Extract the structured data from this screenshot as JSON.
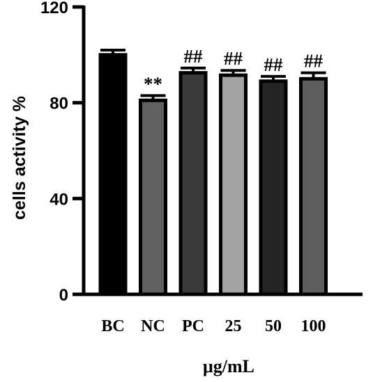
{
  "chart_data": {
    "type": "bar",
    "categories": [
      "BC",
      "NC",
      "PC",
      "25",
      "50",
      "100"
    ],
    "values": [
      100,
      81,
      92.5,
      91.5,
      89,
      90
    ],
    "errors": [
      2,
      2,
      2,
      2,
      2,
      2.5
    ],
    "bar_colors": [
      "#000000",
      "#616161",
      "#3a3a3a",
      "#a3a3a3",
      "#242424",
      "#5e5e5e"
    ],
    "annotations": [
      "",
      "**",
      "##",
      "##",
      "##",
      "##"
    ],
    "ylabel": "cells activity %",
    "xlabel": "μg/mL",
    "ylim": [
      0,
      120
    ],
    "yticks": [
      0,
      40,
      80,
      120
    ],
    "grid": false
  }
}
